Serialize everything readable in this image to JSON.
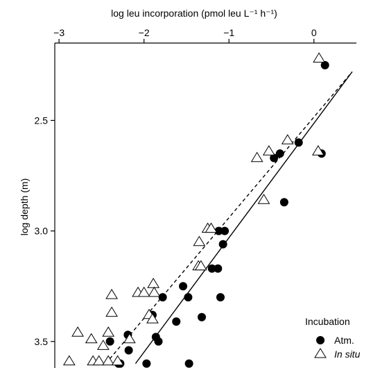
{
  "chart_data": {
    "type": "scatter",
    "title": "",
    "xlabel": "log leu incorporation (pmol leu L⁻¹ h⁻¹)",
    "ylabel": "log depth (m)",
    "xaxis_position": "top",
    "yaxis_inverted": true,
    "xlim": [
      -3.05,
      0.5
    ],
    "ylim": [
      2.15,
      3.62
    ],
    "xticks": [
      -3,
      -2,
      -1,
      0
    ],
    "xtick_labels": [
      "−3",
      "−2",
      "−1",
      "0"
    ],
    "yticks": [
      2.5,
      3.0,
      3.5
    ],
    "ytick_labels": [
      "2.5",
      "3.0",
      "3.5"
    ],
    "grid": false,
    "legend": {
      "title": "Incubation",
      "position": "bottom-right",
      "entries": [
        "Atm.",
        "In situ"
      ]
    },
    "series": [
      {
        "name": "Atm.",
        "marker": "filled-circle",
        "color": "#000000",
        "points": [
          {
            "x": 0.13,
            "y": 2.25
          },
          {
            "x": -0.18,
            "y": 2.6
          },
          {
            "x": -0.4,
            "y": 2.65
          },
          {
            "x": -0.47,
            "y": 2.67
          },
          {
            "x": 0.09,
            "y": 2.65
          },
          {
            "x": -0.35,
            "y": 2.87
          },
          {
            "x": -1.12,
            "y": 3.0
          },
          {
            "x": -1.05,
            "y": 3.0
          },
          {
            "x": -1.07,
            "y": 3.06
          },
          {
            "x": -1.2,
            "y": 3.17
          },
          {
            "x": -1.13,
            "y": 3.17
          },
          {
            "x": -1.54,
            "y": 3.25
          },
          {
            "x": -1.1,
            "y": 3.3
          },
          {
            "x": -1.48,
            "y": 3.3
          },
          {
            "x": -1.78,
            "y": 3.3
          },
          {
            "x": -1.9,
            "y": 3.38
          },
          {
            "x": -1.32,
            "y": 3.39
          },
          {
            "x": -1.62,
            "y": 3.41
          },
          {
            "x": -2.19,
            "y": 3.47
          },
          {
            "x": -1.86,
            "y": 3.48
          },
          {
            "x": -2.4,
            "y": 3.5
          },
          {
            "x": -1.83,
            "y": 3.5
          },
          {
            "x": -2.18,
            "y": 3.54
          },
          {
            "x": -2.3,
            "y": 3.6
          },
          {
            "x": -2.28,
            "y": 3.6
          },
          {
            "x": -1.97,
            "y": 3.6
          },
          {
            "x": -1.47,
            "y": 3.6
          }
        ]
      },
      {
        "name": "In situ",
        "marker": "open-triangle",
        "color": "#000000",
        "points": [
          {
            "x": 0.06,
            "y": 2.22
          },
          {
            "x": -0.31,
            "y": 2.59
          },
          {
            "x": -0.53,
            "y": 2.64
          },
          {
            "x": 0.05,
            "y": 2.64
          },
          {
            "x": -0.67,
            "y": 2.67
          },
          {
            "x": -0.59,
            "y": 2.86
          },
          {
            "x": -1.25,
            "y": 2.99
          },
          {
            "x": -1.21,
            "y": 2.99
          },
          {
            "x": -1.35,
            "y": 3.05
          },
          {
            "x": -1.36,
            "y": 3.16
          },
          {
            "x": -1.33,
            "y": 3.16
          },
          {
            "x": -1.89,
            "y": 3.24
          },
          {
            "x": -1.88,
            "y": 3.28
          },
          {
            "x": -2.07,
            "y": 3.28
          },
          {
            "x": -2.0,
            "y": 3.28
          },
          {
            "x": -2.38,
            "y": 3.29
          },
          {
            "x": -2.38,
            "y": 3.37
          },
          {
            "x": -1.94,
            "y": 3.38
          },
          {
            "x": -1.9,
            "y": 3.4
          },
          {
            "x": -2.78,
            "y": 3.46
          },
          {
            "x": -2.42,
            "y": 3.46
          },
          {
            "x": -2.62,
            "y": 3.49
          },
          {
            "x": -2.17,
            "y": 3.49
          },
          {
            "x": -2.48,
            "y": 3.52
          },
          {
            "x": -2.88,
            "y": 3.59
          },
          {
            "x": -2.6,
            "y": 3.59
          },
          {
            "x": -2.53,
            "y": 3.59
          },
          {
            "x": -2.42,
            "y": 3.59
          },
          {
            "x": -2.31,
            "y": 3.59
          }
        ]
      }
    ],
    "fit_lines": [
      {
        "series": "Atm.",
        "style": "solid",
        "x": [
          -2.1,
          0.45
        ],
        "y": [
          3.6,
          2.28
        ]
      },
      {
        "series": "In situ",
        "style": "dashed",
        "x": [
          -2.45,
          0.45
        ],
        "y": [
          3.6,
          2.28
        ]
      }
    ]
  }
}
